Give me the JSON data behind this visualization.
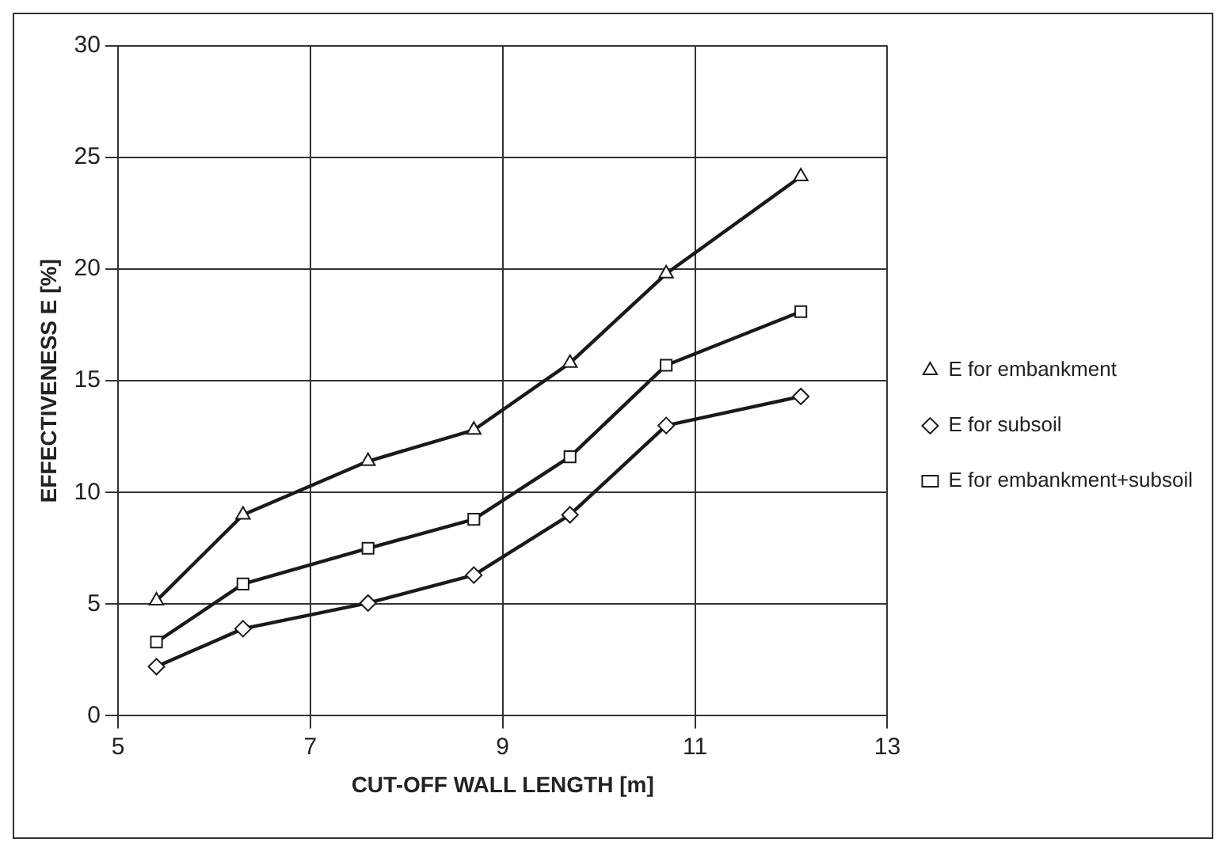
{
  "chart_data": {
    "type": "line",
    "xlabel": "CUT-OFF WALL LENGTH [m]",
    "ylabel": "EFFECTIVENESS E [%]",
    "xlim": [
      5,
      13
    ],
    "xticks": [
      5,
      7,
      9,
      11,
      13
    ],
    "ylim": [
      0,
      30
    ],
    "yticks": [
      0,
      5,
      10,
      15,
      20,
      25,
      30
    ],
    "grid": true,
    "legend": "right",
    "line_style": "solid",
    "series": [
      {
        "name": "E for embankment",
        "color": "#1a1a1a",
        "marker": "triangle",
        "x": [
          5.4,
          6.3,
          7.6,
          8.7,
          9.7,
          10.7,
          12.1
        ],
        "values": [
          5.15,
          9.0,
          11.4,
          12.8,
          15.8,
          19.8,
          24.15
        ]
      },
      {
        "name": "E for subsoil",
        "color": "#1a1a1a",
        "marker": "diamond",
        "x": [
          5.4,
          6.3,
          7.6,
          8.7,
          9.7,
          10.7,
          12.1
        ],
        "values": [
          2.2,
          3.9,
          5.05,
          6.3,
          9.0,
          13.0,
          14.3
        ]
      },
      {
        "name": "E for embankment+subsoil",
        "color": "#1a1a1a",
        "marker": "square",
        "x": [
          5.4,
          6.3,
          7.6,
          8.7,
          9.7,
          10.7,
          12.1
        ],
        "values": [
          3.3,
          5.9,
          7.5,
          8.8,
          11.6,
          15.7,
          18.1
        ]
      }
    ]
  }
}
